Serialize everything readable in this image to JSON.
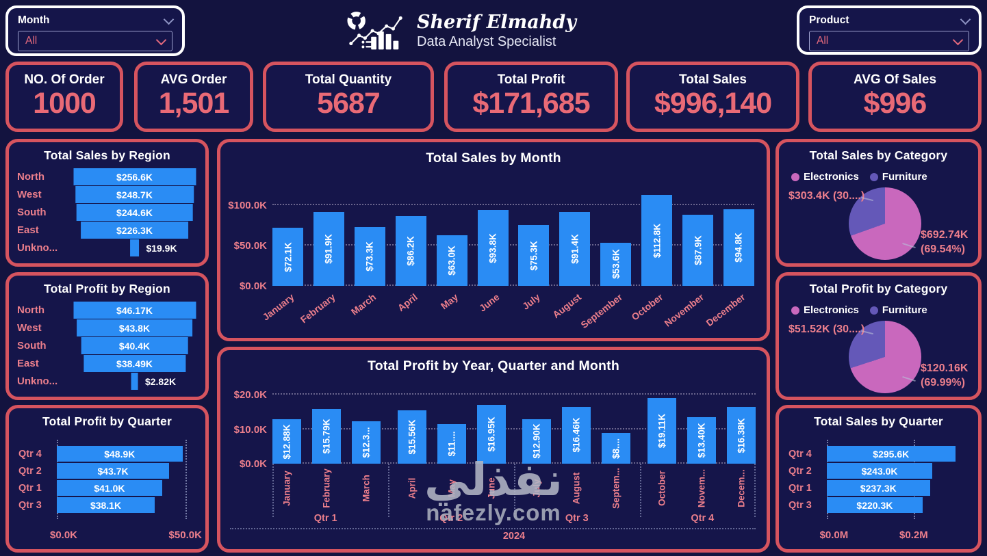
{
  "header": {
    "name": "Sherif Elmahdy",
    "subtitle": "Data Analyst Specialist"
  },
  "filters": {
    "month": {
      "label": "Month",
      "value": "All"
    },
    "product": {
      "label": "Product",
      "value": "All"
    }
  },
  "kpis": [
    {
      "label": "NO. Of Order",
      "value": "1000"
    },
    {
      "label": "AVG Order",
      "value": "1,501"
    },
    {
      "label": "Total Quantity",
      "value": "5687"
    },
    {
      "label": "Total Profit",
      "value": "$171,685"
    },
    {
      "label": "Total Sales",
      "value": "$996,140"
    },
    {
      "label": "AVG Of Sales",
      "value": "$996"
    }
  ],
  "watermark": {
    "arabic": "نفذلي",
    "site": "nafezly.com"
  },
  "colors": {
    "background": "#13133f",
    "card_bg": "#15154a",
    "card_border": "#d6545f",
    "bar_blue": "#2a8cf4",
    "accent_pink": "#ec7f8c",
    "kpi_value": "#e96a76",
    "pie_pink": "#c968bd",
    "pie_purple": "#6458b8",
    "white": "#ffffff",
    "watermark_gray": "#b2b5c4"
  },
  "chart_data": [
    {
      "id": "sales_by_region",
      "type": "funnel",
      "title": "Total Sales by Region",
      "categories": [
        "North",
        "West",
        "South",
        "East",
        "Unkno..."
      ],
      "values": [
        256.6,
        248.7,
        244.6,
        226.3,
        19.9
      ],
      "labels": [
        "$256.6K",
        "$248.7K",
        "$244.6K",
        "$226.3K",
        "$19.9K"
      ]
    },
    {
      "id": "profit_by_region",
      "type": "funnel",
      "title": "Total Profit by Region",
      "categories": [
        "North",
        "West",
        "South",
        "East",
        "Unkno..."
      ],
      "values": [
        46.17,
        43.8,
        40.4,
        38.49,
        2.82
      ],
      "labels": [
        "$46.17K",
        "$43.8K",
        "$40.4K",
        "$38.49K",
        "$2.82K"
      ]
    },
    {
      "id": "profit_by_quarter",
      "type": "bar",
      "orientation": "horizontal",
      "title": "Total Profit by Quarter",
      "categories": [
        "Qtr 4",
        "Qtr 2",
        "Qtr 1",
        "Qtr 3"
      ],
      "values": [
        48.9,
        43.7,
        41.0,
        38.1
      ],
      "labels": [
        "$48.9K",
        "$43.7K",
        "$41.0K",
        "$38.1K"
      ],
      "xticks": [
        {
          "label": "$0.0K",
          "value": 0
        },
        {
          "label": "$50.0K",
          "value": 50
        }
      ],
      "xmax": 53
    },
    {
      "id": "sales_by_month",
      "type": "column",
      "title": "Total Sales by Month",
      "categories": [
        "January",
        "February",
        "March",
        "April",
        "May",
        "June",
        "July",
        "August",
        "September",
        "October",
        "November",
        "December"
      ],
      "values": [
        72.1,
        91.9,
        73.3,
        86.2,
        63.0,
        93.8,
        75.3,
        91.4,
        53.6,
        112.8,
        87.9,
        94.8
      ],
      "labels": [
        "$72.1K",
        "$91.9K",
        "$73.3K",
        "$86.2K",
        "$63.0K",
        "$93.8K",
        "$75.3K",
        "$91.4K",
        "$53.6K",
        "$112.8K",
        "$87.9K",
        "$94.8K"
      ],
      "yticks": [
        {
          "label": "$0.0K",
          "value": 0
        },
        {
          "label": "$50.0K",
          "value": 50
        },
        {
          "label": "$100.0K",
          "value": 100
        }
      ],
      "ymax": 140
    },
    {
      "id": "profit_by_year_quarter_month",
      "type": "column-grouped",
      "title": "Total Profit by Year, Quarter and Month",
      "categories": [
        "January",
        "February",
        "March",
        "April",
        "May",
        "June",
        "July",
        "August",
        "Septem...",
        "October",
        "Novem...",
        "Decem..."
      ],
      "values": [
        12.88,
        15.79,
        12.35,
        15.56,
        11.4,
        16.95,
        12.9,
        16.46,
        8.9,
        19.11,
        13.4,
        16.38
      ],
      "labels": [
        "$12.88K",
        "$15.79K",
        "$12.3...",
        "$15.56K",
        "$11....",
        "$16.95K",
        "$12.90K",
        "$16.46K",
        "$8....",
        "$19.11K",
        "$13.40K",
        "$16.38K"
      ],
      "yticks": [
        {
          "label": "$0.0K",
          "value": 0
        },
        {
          "label": "$10.0K",
          "value": 10
        },
        {
          "label": "$20.0K",
          "value": 20
        }
      ],
      "ymax": 22,
      "groups": [
        "Qtr 1",
        "Qtr 2",
        "Qtr 3",
        "Qtr 4"
      ],
      "year": "2024"
    },
    {
      "id": "sales_by_category",
      "type": "pie",
      "title": "Total Sales by Category",
      "legend": [
        "Electronics",
        "Furniture"
      ],
      "slices": [
        {
          "name": "Electronics",
          "value": 692.74,
          "pct": 69.54,
          "label": "$692.74K (69.54%)",
          "color": "#c968bd"
        },
        {
          "name": "Furniture",
          "value": 303.4,
          "pct": 30.46,
          "label": "$303.4K (30....)",
          "color": "#6458b8"
        }
      ],
      "left_label": "$303.4K (30....)",
      "right_label_1": "$692.74K",
      "right_label_2": "(69.54%)"
    },
    {
      "id": "profit_by_category",
      "type": "pie",
      "title": "Total Profit by Category",
      "legend": [
        "Electronics",
        "Furniture"
      ],
      "slices": [
        {
          "name": "Electronics",
          "value": 120.16,
          "pct": 69.99,
          "label": "$120.16K (69.99%)",
          "color": "#c968bd"
        },
        {
          "name": "Furniture",
          "value": 51.52,
          "pct": 30.01,
          "label": "$51.52K (30....)",
          "color": "#6458b8"
        }
      ],
      "left_label": "$51.52K (30....)",
      "right_label_1": "$120.16K",
      "right_label_2": "(69.99%)"
    },
    {
      "id": "sales_by_quarter",
      "type": "bar",
      "orientation": "horizontal",
      "title": "Total Sales by Quarter",
      "categories": [
        "Qtr 4",
        "Qtr 2",
        "Qtr 1",
        "Qtr 3"
      ],
      "values": [
        295.6,
        243.0,
        237.3,
        220.3
      ],
      "labels": [
        "$295.6K",
        "$243.0K",
        "$237.3K",
        "$220.3K"
      ],
      "xticks": [
        {
          "label": "$0.0M",
          "value": 0
        },
        {
          "label": "$0.2M",
          "value": 200
        }
      ],
      "xmax": 320
    }
  ]
}
